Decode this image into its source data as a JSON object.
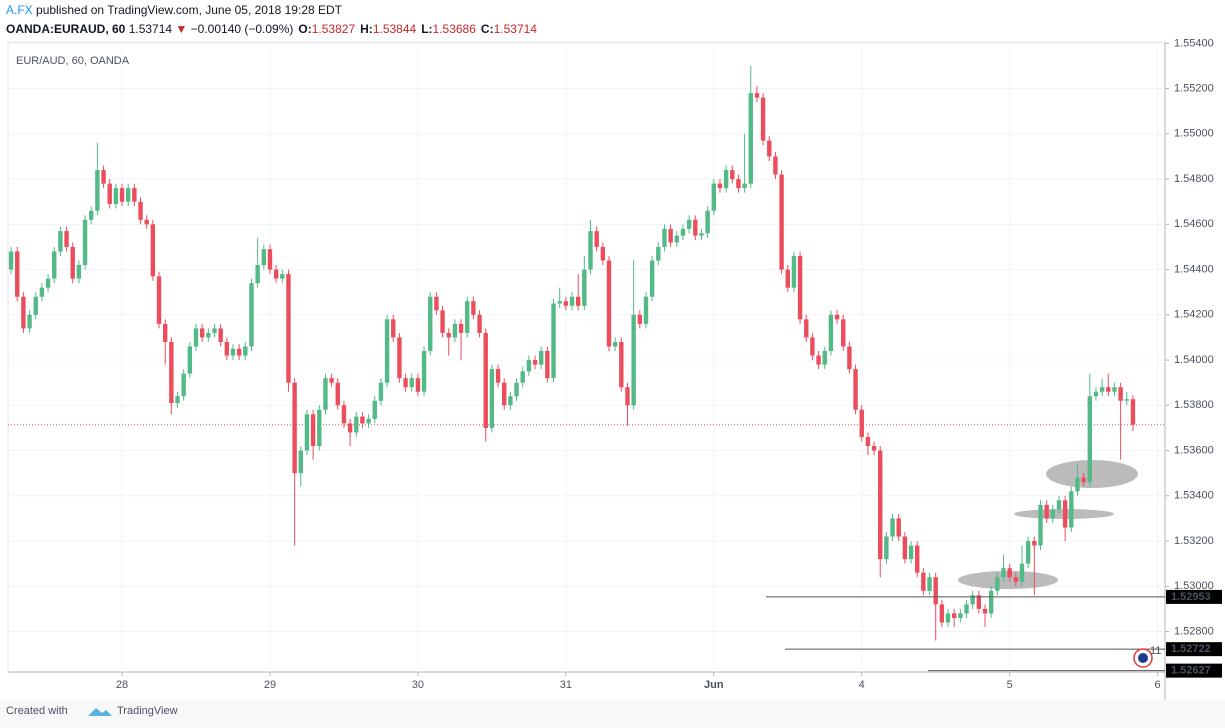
{
  "header": {
    "publisher": "A.FX",
    "published": "published on TradingView.com, June 05, 2018 19:28 EDT",
    "symbol": "OANDA:EURAUD, 60",
    "last": "1.53714",
    "arrow": "▼",
    "change": "−0.00140 (−0.09%)",
    "ohlc": [
      {
        "label": "O:",
        "value": "1.53827"
      },
      {
        "label": "H:",
        "value": "1.53844"
      },
      {
        "label": "L:",
        "value": "1.53686"
      },
      {
        "label": "C:",
        "value": "1.53714"
      }
    ]
  },
  "footer": {
    "created": "Created with",
    "brand": "TradingView"
  },
  "chart_data": {
    "type": "candlestick",
    "title": "EUR/AUD, 60, OANDA",
    "up_color": "#53b987",
    "down_color": "#eb4d5c",
    "grid": true,
    "badge": "11",
    "xlim": [
      -0.5,
      187.2
    ],
    "ylim": [
      1.52621,
      1.55406
    ],
    "xticks": [
      {
        "value": 18,
        "label": "28"
      },
      {
        "value": 42,
        "label": "29"
      },
      {
        "value": 66,
        "label": "30"
      },
      {
        "value": 90,
        "label": "31"
      },
      {
        "value": 114,
        "label": "Jun"
      },
      {
        "value": 138,
        "label": "4"
      },
      {
        "value": 162,
        "label": "5"
      },
      {
        "value": 186,
        "label": "6"
      }
    ],
    "yticks": [
      {
        "value": 1.528,
        "label": "1.52800"
      },
      {
        "value": 1.53,
        "label": "1.53000"
      },
      {
        "value": 1.532,
        "label": "1.53200"
      },
      {
        "value": 1.534,
        "label": "1.53400"
      },
      {
        "value": 1.536,
        "label": "1.53600"
      },
      {
        "value": 1.538,
        "label": "1.53800"
      },
      {
        "value": 1.54,
        "label": "1.54000"
      },
      {
        "value": 1.542,
        "label": "1.54200"
      },
      {
        "value": 1.544,
        "label": "1.54400"
      },
      {
        "value": 1.546,
        "label": "1.54600"
      },
      {
        "value": 1.548,
        "label": "1.54800"
      },
      {
        "value": 1.55,
        "label": "1.55000"
      },
      {
        "value": 1.552,
        "label": "1.55200"
      },
      {
        "value": 1.554,
        "label": "1.55400"
      }
    ],
    "last_price": 1.53714,
    "price_lines": [
      {
        "value": 1.52953,
        "label": "1.52953"
      },
      {
        "value": 1.52722,
        "label": "1.52722"
      },
      {
        "value": 1.52627,
        "label": "1.52627"
      }
    ],
    "open": [
      1.544,
      1.5448,
      1.5428,
      1.5414,
      1.542,
      1.5428,
      1.5432,
      1.5436,
      1.5448,
      1.5457,
      1.545,
      1.5436,
      1.5442,
      1.5462,
      1.5466,
      1.5484,
      1.5478,
      1.5469,
      1.5476,
      1.547,
      1.5476,
      1.547,
      1.5462,
      1.546,
      1.5437,
      1.5416,
      1.5408,
      1.5381,
      1.5384,
      1.5394,
      1.5406,
      1.5414,
      1.541,
      1.5412,
      1.5414,
      1.5408,
      1.5402,
      1.5405,
      1.5402,
      1.5406,
      1.5434,
      1.5442,
      1.5449,
      1.544,
      1.5436,
      1.5438,
      1.539,
      1.535,
      1.536,
      1.5376,
      1.5362,
      1.5378,
      1.5392,
      1.539,
      1.538,
      1.5372,
      1.5368,
      1.5375,
      1.5372,
      1.5374,
      1.5382,
      1.539,
      1.5418,
      1.541,
      1.5392,
      1.5388,
      1.5392,
      1.5386,
      1.5404,
      1.5428,
      1.5422,
      1.5412,
      1.541,
      1.5416,
      1.5412,
      1.5426,
      1.542,
      1.5412,
      1.537,
      1.5396,
      1.539,
      1.538,
      1.5384,
      1.539,
      1.5395,
      1.54,
      1.5398,
      1.5404,
      1.5392,
      1.5425,
      1.5426,
      1.5424,
      1.5428,
      1.5424,
      1.544,
      1.5457,
      1.545,
      1.5444,
      1.5406,
      1.5408,
      1.5388,
      1.538,
      1.542,
      1.5416,
      1.5428,
      1.5444,
      1.545,
      1.5458,
      1.5452,
      1.5455,
      1.5458,
      1.5462,
      1.5455,
      1.5456,
      1.5466,
      1.5478,
      1.5476,
      1.5484,
      1.548,
      1.5476,
      1.5478,
      1.5518,
      1.5516,
      1.5497,
      1.549,
      1.5482,
      1.544,
      1.5432,
      1.5446,
      1.5418,
      1.541,
      1.5402,
      1.5398,
      1.5404,
      1.542,
      1.5418,
      1.5406,
      1.5396,
      1.5378,
      1.5366,
      1.5362,
      1.536,
      1.5312,
      1.5322,
      1.533,
      1.5322,
      1.5312,
      1.5318,
      1.5306,
      1.5298,
      1.5304,
      1.5292,
      1.5284,
      1.5288,
      1.5286,
      1.5288,
      1.5292,
      1.5296,
      1.529,
      1.5288,
      1.5298,
      1.5304,
      1.5308,
      1.5304,
      1.5302,
      1.531,
      1.532,
      1.5318,
      1.5336,
      1.533,
      1.5334,
      1.5338,
      1.5326,
      1.5342,
      1.5348,
      1.5346,
      1.5384,
      1.5386,
      1.5388,
      1.5386,
      1.5388,
      1.5382,
      1.53827
    ],
    "high": [
      1.545,
      1.545,
      1.543,
      1.5422,
      1.543,
      1.5434,
      1.5438,
      1.545,
      1.5459,
      1.5459,
      1.5452,
      1.5444,
      1.5464,
      1.5468,
      1.5496,
      1.5486,
      1.548,
      1.5478,
      1.5478,
      1.5478,
      1.5478,
      1.5472,
      1.5464,
      1.5462,
      1.5439,
      1.5418,
      1.541,
      1.5386,
      1.5396,
      1.5408,
      1.5416,
      1.5416,
      1.5414,
      1.5416,
      1.5416,
      1.541,
      1.5407,
      1.5407,
      1.5408,
      1.5436,
      1.5454,
      1.5451,
      1.5451,
      1.5442,
      1.544,
      1.544,
      1.5392,
      1.5362,
      1.5378,
      1.5378,
      1.538,
      1.5394,
      1.5394,
      1.5392,
      1.5382,
      1.5374,
      1.5377,
      1.5377,
      1.5376,
      1.5384,
      1.5392,
      1.542,
      1.542,
      1.5412,
      1.5394,
      1.5394,
      1.5394,
      1.5406,
      1.543,
      1.543,
      1.5424,
      1.5414,
      1.5418,
      1.5418,
      1.5428,
      1.5428,
      1.5422,
      1.5414,
      1.5398,
      1.5398,
      1.5392,
      1.5386,
      1.5392,
      1.5397,
      1.5402,
      1.5402,
      1.5406,
      1.5406,
      1.5427,
      1.5432,
      1.5428,
      1.543,
      1.5438,
      1.5446,
      1.5462,
      1.5459,
      1.5452,
      1.5446,
      1.541,
      1.541,
      1.539,
      1.5444,
      1.5422,
      1.543,
      1.5446,
      1.5452,
      1.546,
      1.546,
      1.5457,
      1.546,
      1.5464,
      1.5464,
      1.5458,
      1.5468,
      1.548,
      1.548,
      1.5486,
      1.5486,
      1.5482,
      1.55,
      1.553,
      1.5521,
      1.5518,
      1.5499,
      1.5492,
      1.5484,
      1.5442,
      1.5448,
      1.5448,
      1.542,
      1.5412,
      1.5404,
      1.5406,
      1.5422,
      1.5422,
      1.542,
      1.5408,
      1.5398,
      1.538,
      1.5368,
      1.5364,
      1.5362,
      1.5324,
      1.5332,
      1.5332,
      1.5324,
      1.532,
      1.532,
      1.5308,
      1.5306,
      1.5306,
      1.5294,
      1.529,
      1.529,
      1.529,
      1.5294,
      1.5298,
      1.5298,
      1.5292,
      1.53,
      1.5306,
      1.5314,
      1.531,
      1.5306,
      1.5318,
      1.5322,
      1.5322,
      1.5338,
      1.5338,
      1.5336,
      1.534,
      1.534,
      1.5344,
      1.5354,
      1.535,
      1.5394,
      1.5388,
      1.5392,
      1.5394,
      1.539,
      1.539,
      1.5386,
      1.53844
    ],
    "low": [
      1.5438,
      1.5426,
      1.5412,
      1.5412,
      1.5418,
      1.5426,
      1.543,
      1.5434,
      1.5446,
      1.5448,
      1.5434,
      1.5434,
      1.544,
      1.546,
      1.5464,
      1.5476,
      1.5467,
      1.5467,
      1.5468,
      1.5468,
      1.5468,
      1.546,
      1.5458,
      1.5435,
      1.5414,
      1.5398,
      1.5376,
      1.5379,
      1.5382,
      1.5392,
      1.5404,
      1.5408,
      1.5408,
      1.541,
      1.5406,
      1.54,
      1.54,
      1.54,
      1.54,
      1.5404,
      1.5432,
      1.544,
      1.5438,
      1.5434,
      1.5434,
      1.5386,
      1.5318,
      1.5344,
      1.5358,
      1.5356,
      1.536,
      1.5376,
      1.5388,
      1.5378,
      1.537,
      1.5362,
      1.5366,
      1.537,
      1.537,
      1.5372,
      1.538,
      1.5388,
      1.5408,
      1.539,
      1.5386,
      1.5386,
      1.5384,
      1.5384,
      1.5402,
      1.542,
      1.541,
      1.5402,
      1.5408,
      1.54,
      1.541,
      1.5418,
      1.541,
      1.5364,
      1.5368,
      1.5388,
      1.5378,
      1.5378,
      1.5382,
      1.5388,
      1.5393,
      1.5396,
      1.5396,
      1.539,
      1.539,
      1.5423,
      1.5422,
      1.5422,
      1.5422,
      1.5422,
      1.5438,
      1.5448,
      1.5442,
      1.5404,
      1.5404,
      1.5386,
      1.5371,
      1.5378,
      1.5414,
      1.5414,
      1.5426,
      1.5442,
      1.5448,
      1.545,
      1.545,
      1.5453,
      1.5456,
      1.5453,
      1.5453,
      1.5454,
      1.5464,
      1.5474,
      1.5474,
      1.5478,
      1.5474,
      1.5474,
      1.5476,
      1.5514,
      1.5495,
      1.5488,
      1.548,
      1.5438,
      1.543,
      1.543,
      1.5416,
      1.5408,
      1.54,
      1.5396,
      1.5396,
      1.5402,
      1.5416,
      1.5404,
      1.5394,
      1.5376,
      1.5364,
      1.5358,
      1.5358,
      1.5304,
      1.531,
      1.532,
      1.532,
      1.531,
      1.531,
      1.5304,
      1.5296,
      1.5296,
      1.5276,
      1.5282,
      1.5282,
      1.5282,
      1.5284,
      1.5286,
      1.529,
      1.5288,
      1.5282,
      1.5286,
      1.5296,
      1.5302,
      1.5302,
      1.53,
      1.53,
      1.5308,
      1.5296,
      1.5316,
      1.5328,
      1.5328,
      1.5332,
      1.532,
      1.5324,
      1.534,
      1.5344,
      1.5344,
      1.5382,
      1.5384,
      1.5384,
      1.5384,
      1.5356,
      1.538,
      1.53686
    ],
    "close": [
      1.5448,
      1.5428,
      1.5414,
      1.542,
      1.5428,
      1.5432,
      1.5436,
      1.5448,
      1.5457,
      1.545,
      1.5436,
      1.5442,
      1.5462,
      1.5466,
      1.5484,
      1.5478,
      1.5469,
      1.5476,
      1.547,
      1.5476,
      1.547,
      1.5462,
      1.546,
      1.5437,
      1.5416,
      1.5408,
      1.5381,
      1.5384,
      1.5394,
      1.5406,
      1.5414,
      1.541,
      1.5412,
      1.5414,
      1.5408,
      1.5402,
      1.5405,
      1.5402,
      1.5406,
      1.5434,
      1.5442,
      1.5449,
      1.544,
      1.5436,
      1.5438,
      1.539,
      1.535,
      1.536,
      1.5376,
      1.5362,
      1.5378,
      1.5392,
      1.539,
      1.538,
      1.5372,
      1.5368,
      1.5375,
      1.5372,
      1.5374,
      1.5382,
      1.539,
      1.5418,
      1.541,
      1.5392,
      1.5388,
      1.5392,
      1.5386,
      1.5404,
      1.5428,
      1.5422,
      1.5412,
      1.541,
      1.5416,
      1.5412,
      1.5426,
      1.542,
      1.5412,
      1.537,
      1.5396,
      1.539,
      1.538,
      1.5384,
      1.539,
      1.5395,
      1.54,
      1.5398,
      1.5404,
      1.5392,
      1.5425,
      1.5426,
      1.5424,
      1.5428,
      1.5424,
      1.544,
      1.5457,
      1.545,
      1.5444,
      1.5406,
      1.5408,
      1.5388,
      1.538,
      1.542,
      1.5416,
      1.5428,
      1.5444,
      1.545,
      1.5458,
      1.5452,
      1.5455,
      1.5458,
      1.5462,
      1.5455,
      1.5456,
      1.5466,
      1.5478,
      1.5476,
      1.5484,
      1.548,
      1.5476,
      1.5478,
      1.5518,
      1.5516,
      1.5497,
      1.549,
      1.5482,
      1.544,
      1.5432,
      1.5446,
      1.5418,
      1.541,
      1.5402,
      1.5398,
      1.5404,
      1.542,
      1.5418,
      1.5406,
      1.5396,
      1.5378,
      1.5366,
      1.5362,
      1.536,
      1.5312,
      1.5322,
      1.533,
      1.5322,
      1.5312,
      1.5318,
      1.5306,
      1.5298,
      1.5304,
      1.5292,
      1.5284,
      1.5288,
      1.5286,
      1.5288,
      1.5292,
      1.5296,
      1.529,
      1.5288,
      1.5298,
      1.5304,
      1.5308,
      1.5304,
      1.5302,
      1.531,
      1.532,
      1.5318,
      1.5336,
      1.533,
      1.5334,
      1.5338,
      1.5326,
      1.5342,
      1.5348,
      1.5346,
      1.5384,
      1.5386,
      1.5388,
      1.5386,
      1.5388,
      1.5382,
      1.53827,
      1.53714
    ]
  }
}
